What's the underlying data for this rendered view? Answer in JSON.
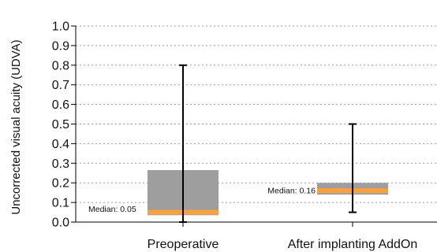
{
  "chart_data": {
    "type": "box",
    "title": "",
    "xlabel": "",
    "ylabel": "Uncorrected visual acuity (UDVA)",
    "ylim": [
      0,
      1.0
    ],
    "yticks": [
      "0.0",
      "0.1",
      "0.2",
      "0.3",
      "0.4",
      "0.5",
      "0.6",
      "0.7",
      "0.8",
      "0.9",
      "1.0"
    ],
    "grid": "horizontal-dotted",
    "categories": [
      "Preoperative",
      "After implanting AddOn"
    ],
    "boxes": [
      {
        "category": "Preoperative",
        "min": 0.0,
        "q1": 0.035,
        "median": 0.05,
        "q3": 0.265,
        "max": 0.8,
        "median_label": "Median: 0.05"
      },
      {
        "category": "After implanting AddOn",
        "min": 0.05,
        "q1": 0.14,
        "median": 0.16,
        "q3": 0.2,
        "max": 0.5,
        "median_label": "Median: 0.16"
      }
    ],
    "colors": {
      "box": "#9e9e9e",
      "median": "#f7a13f",
      "whisker": "#000000",
      "grid": "#9a9a9a"
    }
  }
}
